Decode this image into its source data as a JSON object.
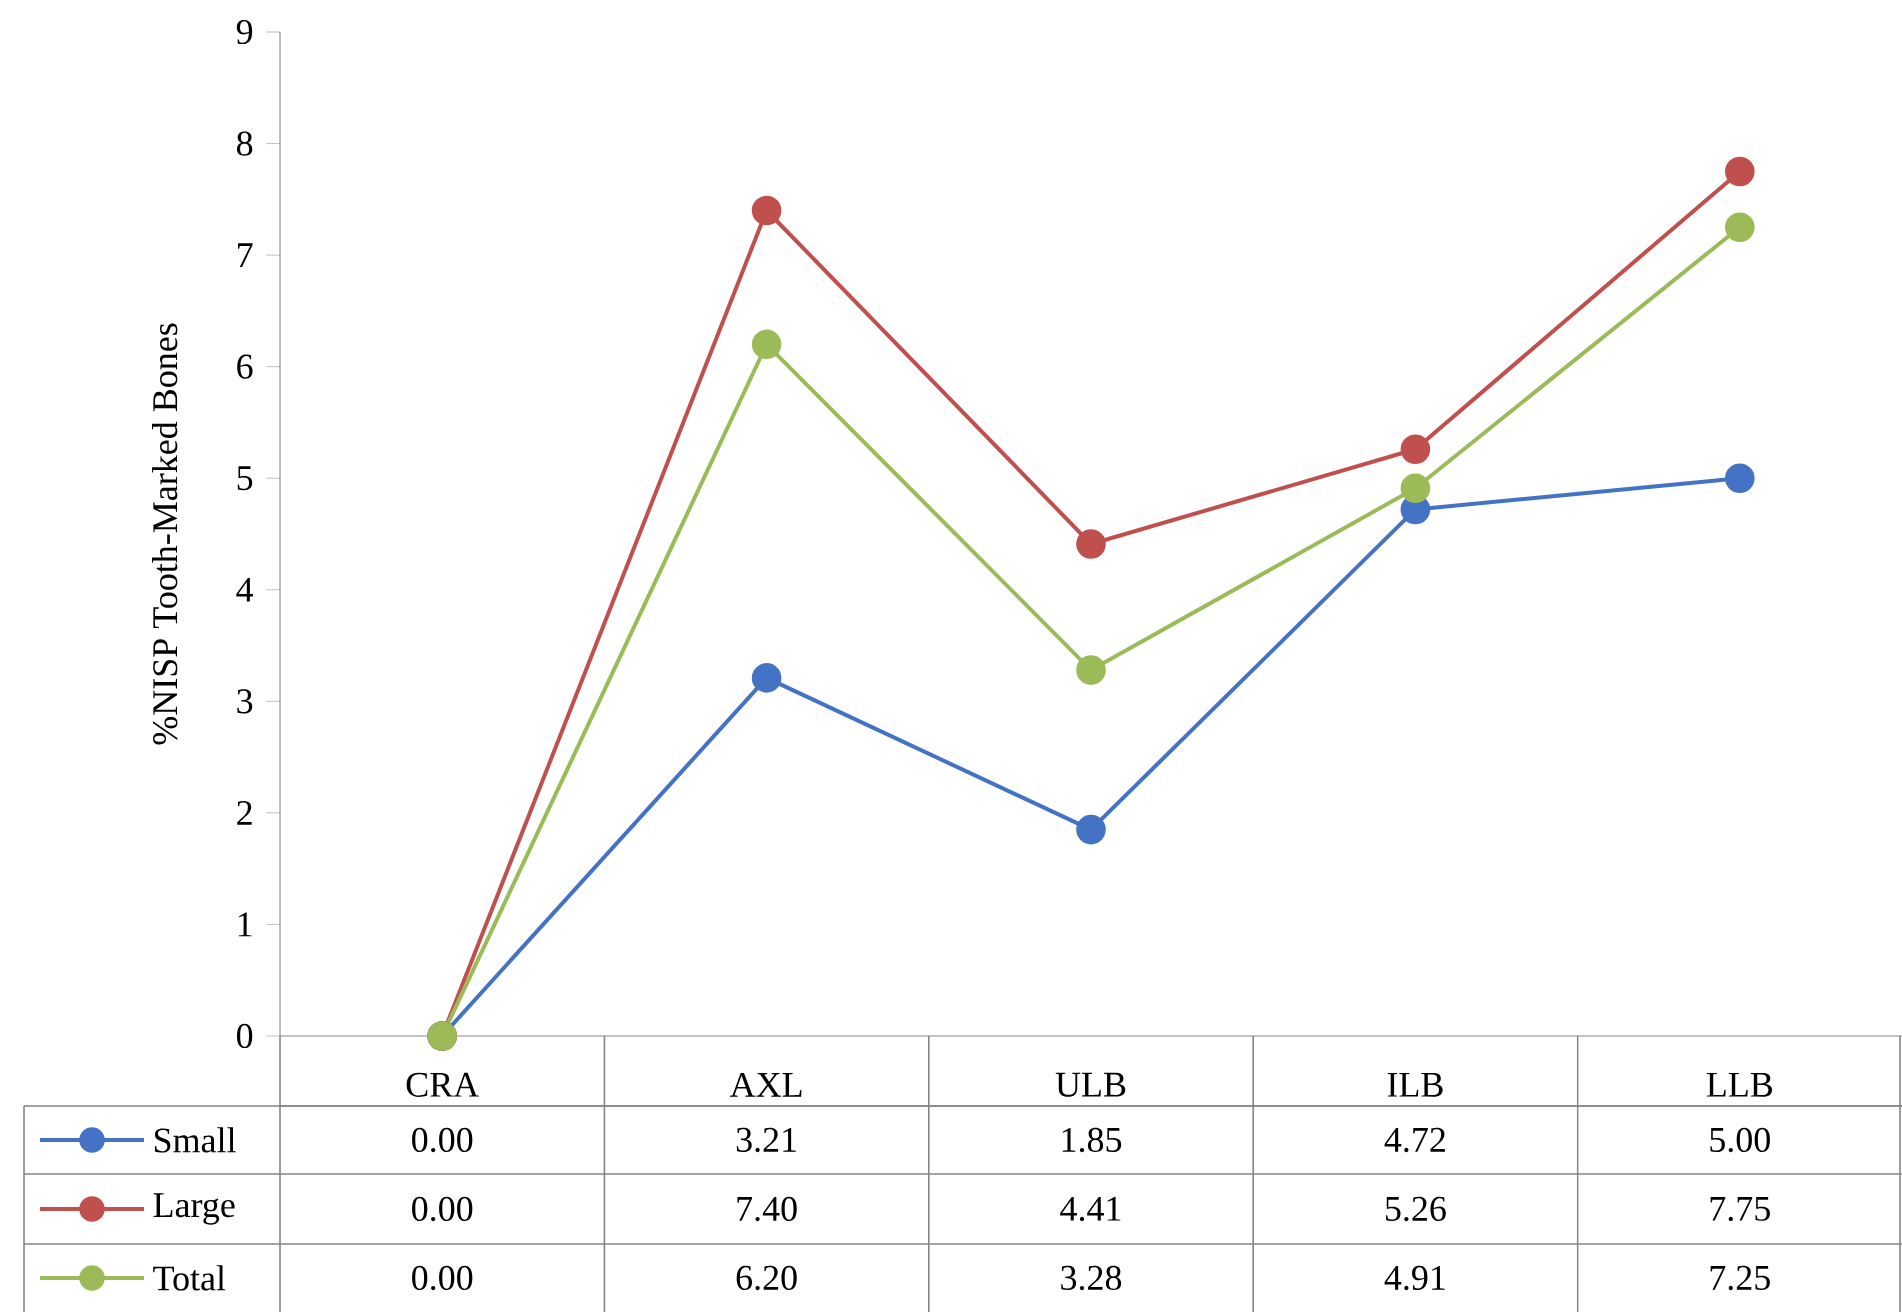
{
  "chart_data": {
    "type": "line",
    "ylabel": "%NISP Tooth-Marked Bones",
    "categories": [
      "CRA",
      "AXL",
      "ULB",
      "ILB",
      "LLB"
    ],
    "series": [
      {
        "name": "Small",
        "color": "#4472c4",
        "values": [
          0.0,
          3.21,
          1.85,
          4.72,
          5.0
        ],
        "value_labels": [
          "0.00",
          "3.21",
          "1.85",
          "4.72",
          "5.00"
        ]
      },
      {
        "name": "Large",
        "color": "#c0504d",
        "values": [
          0.0,
          7.4,
          4.41,
          5.26,
          7.75
        ],
        "value_labels": [
          "0.00",
          "7.40",
          "4.41",
          "5.26",
          "7.75"
        ]
      },
      {
        "name": "Total",
        "color": "#9bbb59",
        "values": [
          0.0,
          6.2,
          3.28,
          4.91,
          7.25
        ],
        "value_labels": [
          "0.00",
          "6.20",
          "3.28",
          "4.91",
          "7.25"
        ]
      }
    ],
    "ylim": [
      0,
      9
    ],
    "yticks": [
      0,
      1,
      2,
      3,
      4,
      5,
      6,
      7,
      8,
      9
    ],
    "legend": "bottom",
    "marker": "circle",
    "line_style": "solid"
  }
}
